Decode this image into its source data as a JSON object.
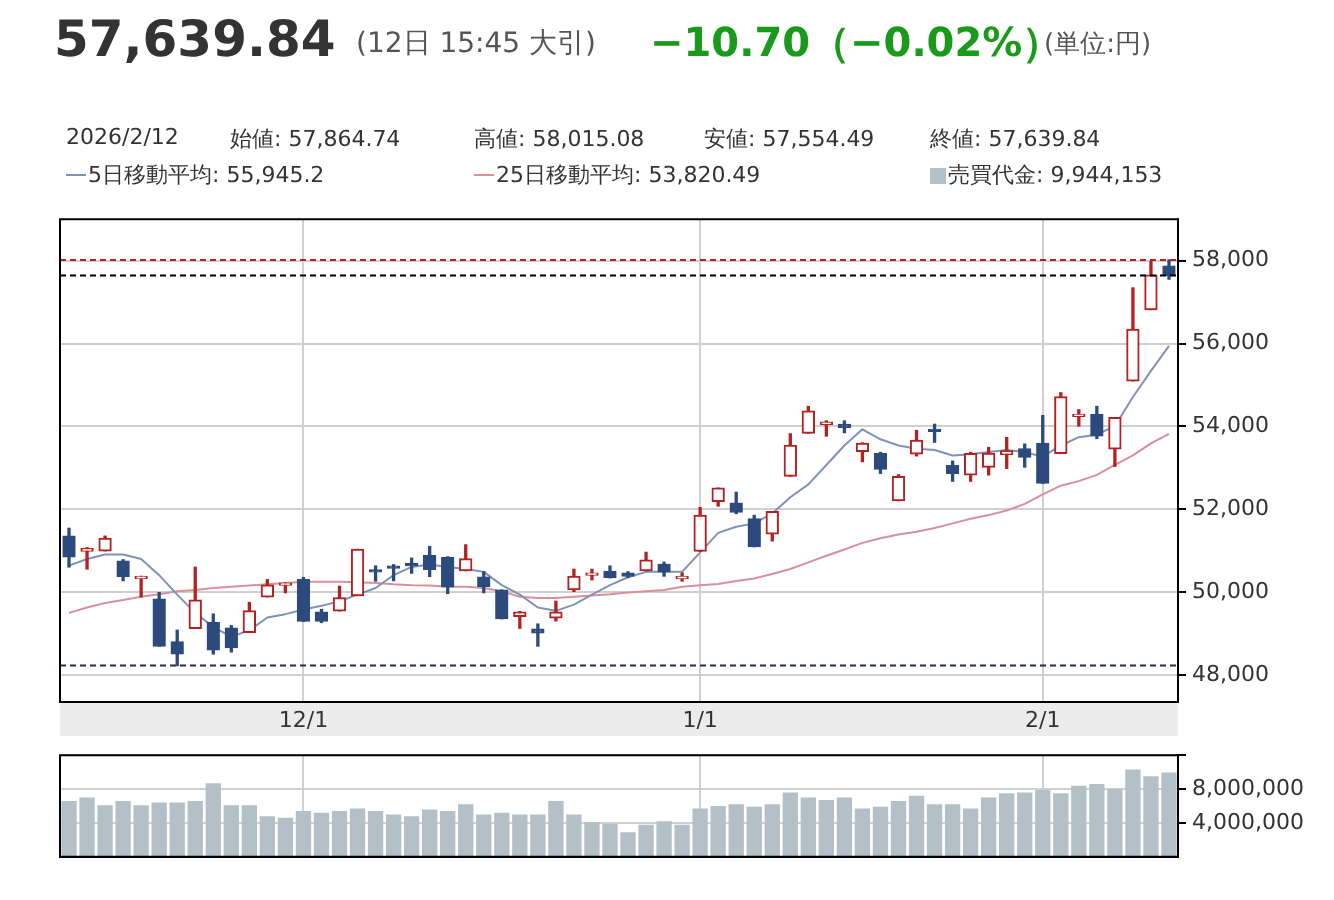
{
  "chart_data": [
    {
      "type": "candlestick",
      "title": "57,639.84",
      "subtitle": "(12日 15:45 大引)",
      "annotations": [
        "−10.70（−0.02%）",
        "(単位:円)",
        "2026/2/12",
        "始値: 57,864.74",
        "高値: 58,015.08",
        "安値: 57,554.49",
        "終値: 57,639.84"
      ],
      "categories": [
        null,
        null,
        null,
        null,
        null,
        null,
        null,
        null,
        null,
        null,
        null,
        null,
        null,
        "12/1",
        null,
        null,
        null,
        null,
        null,
        null,
        null,
        null,
        null,
        null,
        null,
        null,
        null,
        null,
        null,
        null,
        null,
        null,
        null,
        null,
        null,
        "1/1",
        null,
        null,
        null,
        null,
        null,
        null,
        null,
        null,
        null,
        null,
        null,
        null,
        null,
        null,
        null,
        null,
        null,
        null,
        "2/1",
        null,
        null,
        null,
        null,
        null,
        null,
        null
      ],
      "ohlc": [
        [
          51350,
          51540,
          50610,
          50850
        ],
        [
          50990,
          51070,
          50560,
          51050
        ],
        [
          51000,
          51350,
          51000,
          51300
        ],
        [
          50750,
          50780,
          50280,
          50380
        ],
        [
          50330,
          50380,
          49890,
          50360
        ],
        [
          49830,
          49990,
          48700,
          48700
        ],
        [
          48800,
          49080,
          48230,
          48510
        ],
        [
          49130,
          50600,
          49130,
          49810
        ],
        [
          49270,
          49470,
          48510,
          48610
        ],
        [
          49130,
          49190,
          48560,
          48660
        ],
        [
          49030,
          49750,
          49030,
          49550
        ],
        [
          49890,
          50300,
          49890,
          50170
        ],
        [
          50170,
          50220,
          49990,
          50200
        ],
        [
          50300,
          50350,
          49300,
          49300
        ],
        [
          49520,
          49580,
          49270,
          49300
        ],
        [
          49550,
          50140,
          49550,
          49860
        ],
        [
          49920,
          51030,
          49920,
          51030
        ],
        [
          50530,
          50630,
          50270,
          50490
        ],
        [
          50630,
          50660,
          50280,
          50580
        ],
        [
          50670,
          50820,
          50460,
          50640
        ],
        [
          50880,
          51100,
          50380,
          50550
        ],
        [
          50830,
          50850,
          49970,
          50130
        ],
        [
          50520,
          51140,
          50520,
          50800
        ],
        [
          50360,
          50490,
          49990,
          50140
        ],
        [
          50050,
          50050,
          49360,
          49360
        ],
        [
          49420,
          49530,
          49130,
          49520
        ],
        [
          49110,
          49230,
          48700,
          49020
        ],
        [
          49380,
          49780,
          49310,
          49520
        ],
        [
          50060,
          50550,
          50020,
          50380
        ],
        [
          50410,
          50550,
          50300,
          50440
        ],
        [
          50500,
          50630,
          50350,
          50350
        ],
        [
          50460,
          50490,
          50360,
          50390
        ],
        [
          50520,
          50960,
          50520,
          50770
        ],
        [
          50670,
          50720,
          50390,
          50490
        ],
        [
          50330,
          50460,
          50270,
          50380
        ],
        [
          50990,
          52040,
          50990,
          51850
        ],
        [
          52190,
          52510,
          52080,
          52510
        ],
        [
          52150,
          52410,
          51900,
          51930
        ],
        [
          51770,
          51850,
          51100,
          51100
        ],
        [
          51410,
          51940,
          51240,
          51940
        ],
        [
          52800,
          53820,
          52800,
          53540
        ],
        [
          53840,
          54480,
          53840,
          54370
        ],
        [
          54050,
          54130,
          53770,
          54100
        ],
        [
          54050,
          54130,
          53850,
          53980
        ],
        [
          53400,
          53600,
          53150,
          53590
        ],
        [
          53340,
          53370,
          52870,
          52970
        ],
        [
          52210,
          52830,
          52210,
          52790
        ],
        [
          53340,
          53900,
          53290,
          53660
        ],
        [
          53930,
          54050,
          53620,
          53880
        ],
        [
          53050,
          53160,
          52680,
          52870
        ],
        [
          52830,
          53370,
          52680,
          53340
        ],
        [
          53020,
          53490,
          52830,
          53350
        ],
        [
          53320,
          53730,
          52990,
          53410
        ],
        [
          53460,
          53570,
          53020,
          53260
        ],
        [
          53590,
          54260,
          52630,
          52630
        ],
        [
          53350,
          54810,
          53350,
          54710
        ],
        [
          54240,
          54400,
          54010,
          54290
        ],
        [
          54290,
          54480,
          53710,
          53770
        ],
        [
          53460,
          54210,
          53040,
          54210
        ],
        [
          55100,
          57340,
          55100,
          56340
        ],
        [
          56820,
          57980,
          56820,
          57650
        ],
        [
          57864.74,
          58015.08,
          57554.49,
          57639.84
        ]
      ],
      "series": [
        {
          "type": "line",
          "name": "5日移動平均: 55,945.2",
          "color": "#7f93b5",
          "values": [
            50640,
            50800,
            50910,
            50910,
            50800,
            50410,
            49940,
            49500,
            49160,
            48920,
            49080,
            49390,
            49470,
            49580,
            49670,
            49780,
            49940,
            50100,
            50410,
            50610,
            50670,
            50610,
            50560,
            50490,
            50170,
            49940,
            49630,
            49550,
            49700,
            49940,
            50170,
            50360,
            50490,
            50490,
            50490,
            50960,
            51430,
            51580,
            51660,
            51900,
            52290,
            52600,
            53070,
            53540,
            53930,
            53690,
            53540,
            53460,
            53430,
            53300,
            53330,
            53380,
            53430,
            53380,
            53270,
            53540,
            53740,
            53800,
            54010,
            54710,
            55340,
            55945.2
          ]
        },
        {
          "type": "line",
          "name": "25日移動平均: 53,820.49",
          "color": "#d8919b",
          "values": [
            49500,
            49630,
            49740,
            49810,
            49890,
            49950,
            50020,
            50050,
            50100,
            50130,
            50160,
            50190,
            50220,
            50250,
            50250,
            50250,
            50240,
            50220,
            50190,
            50170,
            50160,
            50130,
            50130,
            50100,
            50020,
            49890,
            49860,
            49860,
            49890,
            49920,
            49950,
            49990,
            50020,
            50050,
            50130,
            50170,
            50200,
            50270,
            50330,
            50440,
            50560,
            50720,
            50880,
            51030,
            51190,
            51300,
            51390,
            51460,
            51550,
            51660,
            51770,
            51860,
            51970,
            52130,
            52360,
            52570,
            52680,
            52830,
            53070,
            53300,
            53590,
            53820.49
          ]
        }
      ],
      "ylim": [
        47350,
        59000
      ],
      "yticks": [
        {
          "value": 48000,
          "label": "48,000"
        },
        {
          "value": 50000,
          "label": "50,000"
        },
        {
          "value": 52000,
          "label": "52,000"
        },
        {
          "value": 54000,
          "label": "54,000"
        },
        {
          "value": 56000,
          "label": "56,000"
        },
        {
          "value": 58000,
          "label": "58,000"
        }
      ],
      "ref_lines": [
        {
          "axis": "y",
          "value": 58015.08,
          "color": "#b22222",
          "line_style": "dashed"
        },
        {
          "axis": "y",
          "value": 57639.84,
          "color": "#000000",
          "line_style": "dashed"
        },
        {
          "axis": "y",
          "value": 48230,
          "color": "#1f2f4f",
          "line_style": "dashed"
        }
      ],
      "grid": true,
      "legend": "top"
    },
    {
      "type": "bar",
      "categories": [
        null,
        null,
        null,
        null,
        null,
        null,
        null,
        null,
        null,
        null,
        null,
        null,
        null,
        null,
        null,
        null,
        null,
        null,
        null,
        null,
        null,
        null,
        null,
        null,
        null,
        null,
        null,
        null,
        null,
        null,
        null,
        null,
        null,
        null,
        null,
        null,
        null,
        null,
        null,
        null,
        null,
        null,
        null,
        null,
        null,
        null,
        null,
        null,
        null,
        null,
        null,
        null,
        null,
        null,
        null,
        null,
        null,
        null,
        null,
        null,
        null,
        null
      ],
      "series": [
        {
          "name": "売買代金: 9,944,153",
          "color": "#b4c0c8",
          "values": [
            6600000,
            7000000,
            6100000,
            6600000,
            6100000,
            6400000,
            6400000,
            6600000,
            8700000,
            6100000,
            6100000,
            4800000,
            4600000,
            5400000,
            5200000,
            5400000,
            5700000,
            5400000,
            5000000,
            4800000,
            5600000,
            5400000,
            6200000,
            5000000,
            5200000,
            5000000,
            5000000,
            6600000,
            5000000,
            4100000,
            3900000,
            2900000,
            3800000,
            4200000,
            3800000,
            5700000,
            6000000,
            6200000,
            5900000,
            6200000,
            7600000,
            7000000,
            6700000,
            7000000,
            5700000,
            5900000,
            6600000,
            7200000,
            6200000,
            6200000,
            5700000,
            7000000,
            7500000,
            7600000,
            7900000,
            7500000,
            8400000,
            8600000,
            8000000,
            10300000,
            9500000,
            9944153
          ]
        }
      ],
      "ylim": [
        0,
        12000000
      ],
      "yticks": [
        {
          "value": 4000000,
          "label": "4,000,000"
        },
        {
          "value": 8000000,
          "label": "8,000,000"
        },
        {
          "value": 12000000,
          "label": null
        }
      ],
      "tick_labels": "y",
      "grid": true,
      "legend": "top"
    }
  ]
}
